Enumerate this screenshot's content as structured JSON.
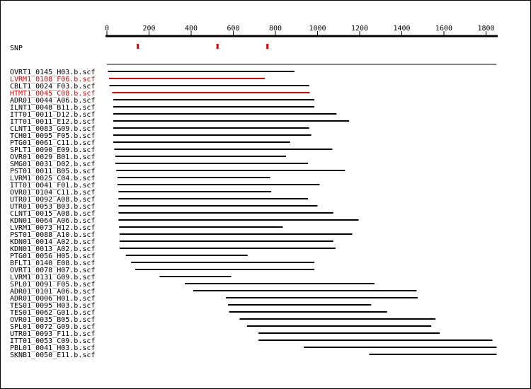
{
  "chart_data": {
    "type": "alignment",
    "axis": {
      "min": 0,
      "max": 1850,
      "ticks": [
        0,
        200,
        400,
        600,
        800,
        1000,
        1200,
        1400,
        1600,
        1800
      ]
    },
    "snp_label": "SNP",
    "snp_positions": [
      147,
      525,
      762
    ],
    "reference_span": [
      0,
      1850
    ],
    "colors": {
      "normal": "#000000",
      "highlight": "#dd0000"
    },
    "reads": [
      {
        "name": "OVRT1_0145_H03.b.scf",
        "start": 5,
        "end": 890,
        "highlight": false
      },
      {
        "name": "LVRM1_0108_F06.b.scf",
        "start": 10,
        "end": 750,
        "highlight": true
      },
      {
        "name": "CBLT1_0024_F03.b.scf",
        "start": 12,
        "end": 960,
        "highlight": false
      },
      {
        "name": "HTMT1_0045_C08.b.scf",
        "start": 25,
        "end": 963,
        "highlight": true
      },
      {
        "name": "ADR01_0044_A06.b.scf",
        "start": 30,
        "end": 985,
        "highlight": false
      },
      {
        "name": "ILNT1_0048_B11.b.scf",
        "start": 30,
        "end": 985,
        "highlight": false
      },
      {
        "name": "ITT01_0011_D12.b.scf",
        "start": 30,
        "end": 1090,
        "highlight": false
      },
      {
        "name": "ITT01_0011_E12.b.scf",
        "start": 30,
        "end": 1150,
        "highlight": false
      },
      {
        "name": "CLNT1_0083_G09.b.scf",
        "start": 30,
        "end": 960,
        "highlight": false
      },
      {
        "name": "TCH01_0095_F05.b.scf",
        "start": 30,
        "end": 970,
        "highlight": false
      },
      {
        "name": "PTG01_0061_C11.b.scf",
        "start": 30,
        "end": 870,
        "highlight": false
      },
      {
        "name": "SPLT1_0090_E09.b.scf",
        "start": 35,
        "end": 1070,
        "highlight": false
      },
      {
        "name": "OVR01_0029_B01.b.scf",
        "start": 40,
        "end": 850,
        "highlight": false
      },
      {
        "name": "SMG01_0031_D02.b.scf",
        "start": 40,
        "end": 955,
        "highlight": false
      },
      {
        "name": "PST01_0011_B05.b.scf",
        "start": 45,
        "end": 1130,
        "highlight": false
      },
      {
        "name": "LVRM1_0025_C04.b.scf",
        "start": 50,
        "end": 775,
        "highlight": false
      },
      {
        "name": "ITT01_0041_F01.b.scf",
        "start": 50,
        "end": 1010,
        "highlight": false
      },
      {
        "name": "OVR01_0104_C11.b.scf",
        "start": 55,
        "end": 780,
        "highlight": false
      },
      {
        "name": "UTR01_0092_A08.b.scf",
        "start": 55,
        "end": 955,
        "highlight": false
      },
      {
        "name": "UTR01_0053_B03.b.scf",
        "start": 55,
        "end": 1000,
        "highlight": false
      },
      {
        "name": "CLNT1_0015_A08.b.scf",
        "start": 55,
        "end": 1075,
        "highlight": false
      },
      {
        "name": "KDN01_0064_A06.b.scf",
        "start": 55,
        "end": 1195,
        "highlight": false
      },
      {
        "name": "LVRM1_0073_H12.b.scf",
        "start": 58,
        "end": 835,
        "highlight": false
      },
      {
        "name": "PST01_0088_A10.b.scf",
        "start": 60,
        "end": 1165,
        "highlight": false
      },
      {
        "name": "KDN01_0014_A02.b.scf",
        "start": 60,
        "end": 1075,
        "highlight": false
      },
      {
        "name": "KDN01_0013_A02.b.scf",
        "start": 60,
        "end": 1085,
        "highlight": false
      },
      {
        "name": "PTG01_0056_H05.b.scf",
        "start": 90,
        "end": 668,
        "highlight": false
      },
      {
        "name": "BFLT1_0140_E08.b.scf",
        "start": 115,
        "end": 985,
        "highlight": false
      },
      {
        "name": "OVRT1_0078_H07.b.scf",
        "start": 135,
        "end": 985,
        "highlight": false
      },
      {
        "name": "LVRM1_0131_G09.b.scf",
        "start": 250,
        "end": 590,
        "highlight": false
      },
      {
        "name": "SPL01_0091_F05.b.scf",
        "start": 370,
        "end": 1270,
        "highlight": false
      },
      {
        "name": "ADR01_0101_A06.b.scf",
        "start": 410,
        "end": 1470,
        "highlight": false
      },
      {
        "name": "ADR01_0006_H01.b.scf",
        "start": 565,
        "end": 1475,
        "highlight": false
      },
      {
        "name": "TES01_0095_H03.b.scf",
        "start": 575,
        "end": 1255,
        "highlight": false
      },
      {
        "name": "TES01_0062_G01.b.scf",
        "start": 580,
        "end": 1330,
        "highlight": false
      },
      {
        "name": "OVR01_0035_B05.b.scf",
        "start": 630,
        "end": 1560,
        "highlight": false
      },
      {
        "name": "SPL01_0072_G09.b.scf",
        "start": 665,
        "end": 1540,
        "highlight": false
      },
      {
        "name": "UTR01_0093_F11.b.scf",
        "start": 720,
        "end": 1580,
        "highlight": false
      },
      {
        "name": "ITT01_0053_C09.b.scf",
        "start": 720,
        "end": 1830,
        "highlight": false
      },
      {
        "name": "PBL01_0041_H03.b.scf",
        "start": 935,
        "end": 1850,
        "highlight": false
      },
      {
        "name": "SKNB1_0050_E11.b.scf",
        "start": 1245,
        "end": 1850,
        "highlight": false
      }
    ]
  }
}
